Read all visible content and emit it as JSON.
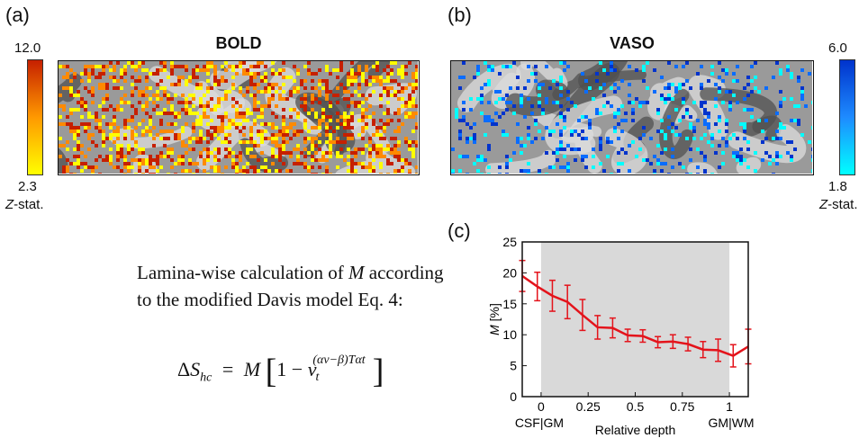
{
  "panel_a": {
    "label": "(a)",
    "title": "BOLD",
    "colorbar": {
      "max": "12.0",
      "min": "2.3",
      "stat_prefix": "Z",
      "stat_suffix": "-stat.",
      "colors": [
        "#ffff00",
        "#ff8a00",
        "#c62000"
      ]
    }
  },
  "panel_b": {
    "label": "(b)",
    "title": "VASO",
    "colorbar": {
      "max": "6.0",
      "min": "1.8",
      "stat_prefix": "Z",
      "stat_suffix": "-stat.",
      "colors": [
        "#00ffff",
        "#0a6cff",
        "#0033cc"
      ]
    }
  },
  "description": {
    "line1_prefix": "Lamina-wise calculation of ",
    "line1_var": "M",
    "line1_suffix": " according",
    "line2": "to the modified Davis model Eq. 4:"
  },
  "equation": {
    "lhs_delta": "Δ",
    "lhs_var": "S",
    "lhs_sub": "hc",
    "equals": "=",
    "var_m": "M",
    "one_minus": "1 −",
    "v": "v",
    "v_sub": "t",
    "exponent": "(αv−β)Tαt"
  },
  "panel_c": {
    "label": "(c)",
    "shade_color": "#d9d9d9",
    "line_color": "#e4131b"
  },
  "chart_data": {
    "type": "line",
    "title": "",
    "xlabel": "Relative depth",
    "ylabel": "M [%]",
    "xlim": [
      -0.1,
      1.1
    ],
    "ylim": [
      0,
      25
    ],
    "xticks": [
      "0",
      "0.25",
      "0.5",
      "0.75",
      "1"
    ],
    "yticks": [
      "0",
      "5",
      "10",
      "15",
      "20",
      "25"
    ],
    "x_end_labels": {
      "left": "CSF|GM",
      "right": "GM|WM"
    },
    "shaded_region": [
      0,
      1
    ],
    "grid": false,
    "series": [
      {
        "x": [
          -0.1,
          -0.02,
          0.06,
          0.14,
          0.22,
          0.3,
          0.38,
          0.46,
          0.54,
          0.62,
          0.7,
          0.78,
          0.86,
          0.94,
          1.02,
          1.1
        ],
        "y": [
          19.5,
          17.8,
          16.3,
          15.3,
          13.2,
          11.2,
          11.1,
          9.9,
          9.8,
          8.8,
          8.9,
          8.5,
          7.6,
          7.5,
          6.6,
          8.1
        ],
        "err": [
          2.5,
          2.3,
          2.5,
          2.7,
          2.5,
          1.9,
          1.6,
          1.0,
          1.0,
          0.9,
          1.1,
          1.1,
          1.3,
          1.8,
          1.8,
          2.8
        ]
      }
    ]
  }
}
